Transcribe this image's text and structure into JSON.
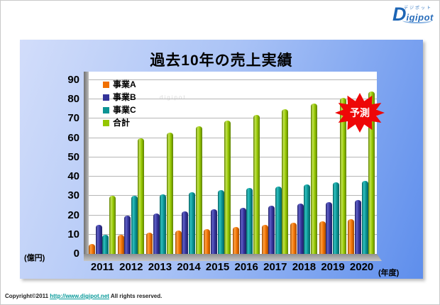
{
  "logo": {
    "kana": "デジポット",
    "initial": "D",
    "rest": "igipot"
  },
  "footer": {
    "copyright_prefix": "Copyright©2011 ",
    "link": "http://www.digipot.net",
    "copyright_suffix": " All rights reserved."
  },
  "slide": {
    "watermark": "digipot"
  },
  "chart_data": {
    "type": "bar",
    "title": "過去10年の売上実績",
    "categories": [
      "2011",
      "2012",
      "2013",
      "2014",
      "2015",
      "2016",
      "2017",
      "2018",
      "2019",
      "2020"
    ],
    "series": [
      {
        "name": "事業A",
        "color": "#f07000",
        "color_light": "#ffa040",
        "color_dark": "#a34c00",
        "values": [
          5,
          10,
          11,
          12,
          13,
          14,
          15,
          16,
          17,
          18
        ]
      },
      {
        "name": "事業B",
        "color": "#333399",
        "color_light": "#6060c8",
        "color_dark": "#202066",
        "values": [
          15,
          20,
          21,
          22,
          23,
          24,
          25,
          26,
          27,
          28
        ]
      },
      {
        "name": "事業C",
        "color": "#0b9494",
        "color_light": "#2fc0c0",
        "color_dark": "#056161",
        "values": [
          10,
          30,
          31,
          32,
          33,
          34,
          35,
          36,
          37,
          38
        ]
      },
      {
        "name": "合計",
        "color": "#94c600",
        "color_light": "#c2e34e",
        "color_dark": "#5d8000",
        "values": [
          30,
          60,
          63,
          66,
          69,
          72,
          75,
          78,
          81,
          84
        ]
      }
    ],
    "ylabel": "(億円)",
    "xlabel": "(年度)",
    "ylim": [
      0,
      90
    ],
    "ytick_step": 10,
    "grid": true,
    "legend_position": "inside-top-left",
    "annotation": {
      "text": "予測",
      "target": "2020",
      "color": "#ee0707"
    }
  }
}
